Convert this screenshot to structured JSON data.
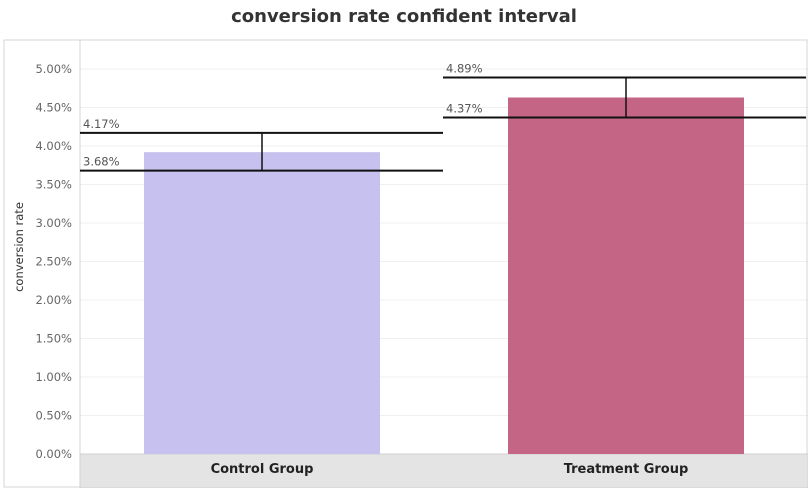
{
  "chart_data": {
    "type": "bar",
    "title": "conversion rate confident interval",
    "xlabel": "",
    "ylabel": "conversion rate",
    "ylim": [
      0,
      5.2
    ],
    "y_ticks": [
      "0.00%",
      "0.50%",
      "1.00%",
      "1.50%",
      "2.00%",
      "2.50%",
      "3.00%",
      "3.50%",
      "4.00%",
      "4.50%",
      "5.00%"
    ],
    "y_tick_values": [
      0,
      0.5,
      1.0,
      1.5,
      2.0,
      2.5,
      3.0,
      3.5,
      4.0,
      4.5,
      5.0
    ],
    "categories": [
      "Control Group",
      "Treatment Group"
    ],
    "values": [
      3.92,
      4.63
    ],
    "ci_lower": [
      3.68,
      4.37
    ],
    "ci_upper": [
      4.17,
      4.89
    ],
    "ci_lower_labels": [
      "3.68%",
      "4.37%"
    ],
    "ci_upper_labels": [
      "4.17%",
      "4.89%"
    ],
    "colors": [
      "#c6c1ee",
      "#c46586"
    ],
    "grid": true,
    "legend": "none"
  }
}
